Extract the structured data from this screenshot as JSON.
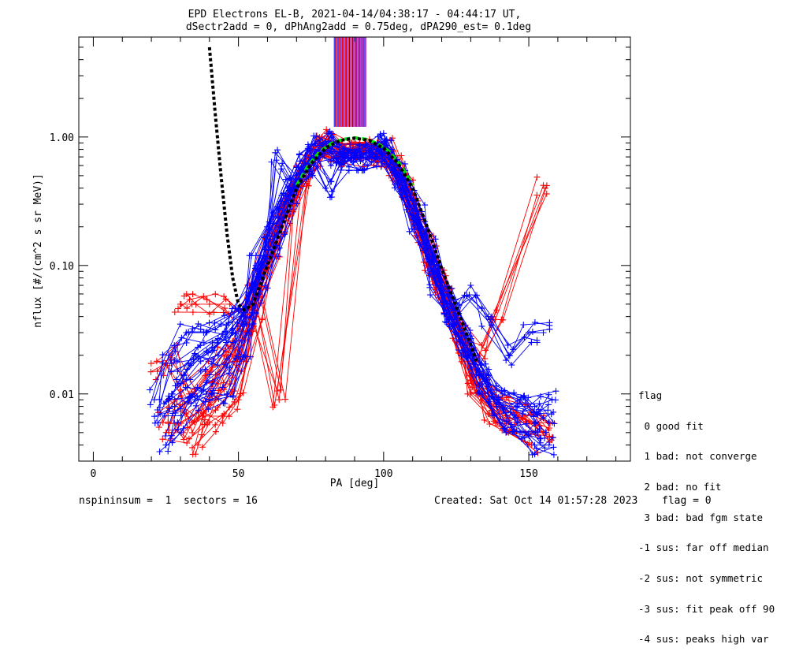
{
  "chart_data": {
    "type": "scatter",
    "title_line1": "EPD Electrons EL-B, 2021-04-14/04:38:17 - 04:44:17 UT,",
    "title_line2": "dSectr2add = 0, dPhAng2add = 0.75deg, dPA290_est=   0.1deg",
    "xlabel": "PA [deg]",
    "ylabel": "nflux [#/(cm^2 s sr MeV)]",
    "x_scale": "linear",
    "y_scale": "log",
    "xlim": [
      -5,
      185
    ],
    "ylim": [
      0.003,
      6.0
    ],
    "x_ticks": [
      {
        "value": 0,
        "label": "0"
      },
      {
        "value": 50,
        "label": "50"
      },
      {
        "value": 100,
        "label": "100"
      },
      {
        "value": 150,
        "label": "150"
      }
    ],
    "y_ticks": [
      {
        "value": 0.01,
        "label": "0.01"
      },
      {
        "value": 0.1,
        "label": "0.10"
      },
      {
        "value": 1.0,
        "label": "1.00"
      }
    ],
    "series": [
      {
        "color": "#ff0000",
        "marker": "+",
        "sweeps": [
          [
            [
              24,
              0.006
            ],
            [
              28,
              0.009
            ],
            [
              34,
              0.006
            ],
            [
              42,
              0.009
            ],
            [
              47,
              0.012
            ],
            [
              53,
              0.03
            ],
            [
              58,
              0.09
            ],
            [
              64,
              0.2
            ],
            [
              70,
              0.4
            ],
            [
              76,
              0.66
            ],
            [
              80,
              0.84
            ],
            [
              84,
              0.77
            ],
            [
              88,
              0.77
            ],
            [
              92,
              0.77
            ],
            [
              96,
              0.77
            ],
            [
              100,
              0.78
            ],
            [
              104,
              0.6
            ],
            [
              110,
              0.3
            ],
            [
              116,
              0.1
            ],
            [
              121,
              0.06
            ],
            [
              126,
              0.03
            ],
            [
              132,
              0.012
            ],
            [
              138,
              0.008
            ],
            [
              143,
              0.006
            ],
            [
              150,
              0.006
            ],
            [
              155,
              0.005
            ]
          ],
          [
            [
              26,
              0.005
            ],
            [
              31,
              0.005
            ],
            [
              38,
              0.007
            ],
            [
              43,
              0.012
            ],
            [
              49,
              0.022
            ],
            [
              55,
              0.06
            ],
            [
              61,
              0.14
            ],
            [
              67,
              0.3
            ],
            [
              73,
              0.6
            ],
            [
              79,
              0.88
            ],
            [
              85,
              0.75
            ],
            [
              90,
              0.75
            ],
            [
              95,
              0.75
            ],
            [
              101,
              0.82
            ],
            [
              107,
              0.45
            ],
            [
              113,
              0.2
            ],
            [
              119,
              0.08
            ],
            [
              124,
              0.04
            ],
            [
              129,
              0.018
            ],
            [
              134,
              0.009
            ],
            [
              140,
              0.007
            ],
            [
              147,
              0.006
            ],
            [
              153,
              0.006
            ]
          ],
          [
            [
              30,
              0.05
            ],
            [
              34,
              0.05
            ],
            [
              40,
              0.05
            ],
            [
              47,
              0.05
            ],
            [
              52,
              0.04
            ],
            [
              57,
              0.08
            ],
            [
              63,
              0.18
            ],
            [
              68,
              0.36
            ],
            [
              74,
              0.65
            ],
            [
              81,
              0.95
            ],
            [
              87,
              0.8
            ],
            [
              93,
              0.8
            ],
            [
              98,
              0.85
            ],
            [
              103,
              0.6
            ],
            [
              109,
              0.35
            ],
            [
              115,
              0.15
            ],
            [
              121,
              0.05
            ],
            [
              127,
              0.03
            ],
            [
              133,
              0.02
            ],
            [
              139,
              0.045
            ],
            [
              155,
              0.42
            ]
          ],
          [
            [
              36,
              0.004
            ],
            [
              40,
              0.006
            ],
            [
              45,
              0.007
            ],
            [
              50,
              0.009
            ],
            [
              56,
              0.04
            ],
            [
              62,
              0.12
            ],
            [
              67,
              0.25
            ],
            [
              72,
              0.5
            ],
            [
              78,
              0.8
            ],
            [
              84,
              0.7
            ],
            [
              91,
              0.7
            ],
            [
              97,
              0.7
            ],
            [
              102,
              0.78
            ],
            [
              108,
              0.4
            ],
            [
              114,
              0.18
            ],
            [
              120,
              0.07
            ],
            [
              126,
              0.03
            ],
            [
              131,
              0.012
            ],
            [
              136,
              0.007
            ],
            [
              143,
              0.005
            ],
            [
              151,
              0.004
            ]
          ],
          [
            [
              22,
              0.015
            ],
            [
              27,
              0.02
            ],
            [
              33,
              0.01
            ],
            [
              39,
              0.015
            ],
            [
              45,
              0.02
            ],
            [
              51,
              0.015
            ],
            [
              56,
              0.05
            ],
            [
              64,
              0.009
            ],
            [
              72,
              0.5
            ],
            [
              79,
              0.85
            ],
            [
              86,
              0.75
            ],
            [
              92,
              0.75
            ],
            [
              98,
              0.75
            ],
            [
              104,
              0.55
            ],
            [
              110,
              0.28
            ],
            [
              116,
              0.12
            ],
            [
              122,
              0.05
            ],
            [
              128,
              0.025
            ],
            [
              134,
              0.011
            ],
            [
              141,
              0.008
            ],
            [
              148,
              0.007
            ],
            [
              156,
              0.005
            ]
          ]
        ]
      },
      {
        "color": "#0000ff",
        "marker": "+",
        "sweeps": [
          [
            [
              21,
              0.009
            ],
            [
              26,
              0.02
            ],
            [
              32,
              0.03
            ],
            [
              38,
              0.03
            ],
            [
              44,
              0.035
            ],
            [
              50,
              0.045
            ],
            [
              55,
              0.07
            ],
            [
              61,
              0.16
            ],
            [
              66,
              0.3
            ],
            [
              72,
              0.55
            ],
            [
              78,
              0.86
            ],
            [
              84,
              0.72
            ],
            [
              89,
              0.72
            ],
            [
              94,
              0.72
            ],
            [
              99,
              0.74
            ],
            [
              105,
              0.5
            ],
            [
              111,
              0.22
            ],
            [
              117,
              0.09
            ],
            [
              123,
              0.04
            ],
            [
              129,
              0.02
            ],
            [
              135,
              0.013
            ],
            [
              141,
              0.01
            ],
            [
              147,
              0.009
            ],
            [
              153,
              0.007
            ],
            [
              157,
              0.006
            ]
          ],
          [
            [
              25,
              0.004
            ],
            [
              29,
              0.006
            ],
            [
              35,
              0.009
            ],
            [
              41,
              0.012
            ],
            [
              47,
              0.016
            ],
            [
              53,
              0.03
            ],
            [
              58,
              0.08
            ],
            [
              64,
              0.2
            ],
            [
              70,
              0.45
            ],
            [
              76,
              0.75
            ],
            [
              82,
              0.78
            ],
            [
              88,
              0.68
            ],
            [
              93,
              0.68
            ],
            [
              99,
              0.8
            ],
            [
              104,
              0.58
            ],
            [
              110,
              0.32
            ],
            [
              116,
              0.14
            ],
            [
              122,
              0.06
            ],
            [
              128,
              0.028
            ],
            [
              133,
              0.015
            ],
            [
              139,
              0.008
            ],
            [
              146,
              0.006
            ],
            [
              152,
              0.004
            ],
            [
              157,
              0.004
            ]
          ],
          [
            [
              27,
              0.01
            ],
            [
              32,
              0.013
            ],
            [
              37,
              0.018
            ],
            [
              43,
              0.02
            ],
            [
              48,
              0.03
            ],
            [
              54,
              0.05
            ],
            [
              60,
              0.12
            ],
            [
              63,
              0.66
            ],
            [
              69,
              0.42
            ],
            [
              75,
              0.7
            ],
            [
              80,
              0.4
            ],
            [
              86,
              0.65
            ],
            [
              92,
              0.65
            ],
            [
              97,
              0.7
            ],
            [
              101,
              0.86
            ],
            [
              107,
              0.4
            ],
            [
              113,
              0.17
            ],
            [
              118,
              0.07
            ],
            [
              124,
              0.045
            ],
            [
              130,
              0.07
            ],
            [
              136,
              0.04
            ],
            [
              143,
              0.02
            ],
            [
              150,
              0.03
            ],
            [
              155,
              0.03
            ]
          ],
          [
            [
              23,
              0.007
            ],
            [
              28,
              0.008
            ],
            [
              34,
              0.01
            ],
            [
              40,
              0.009
            ],
            [
              46,
              0.01
            ],
            [
              52,
              0.02
            ],
            [
              57,
              0.06
            ],
            [
              62,
              0.14
            ],
            [
              68,
              0.32
            ],
            [
              74,
              0.6
            ],
            [
              80,
              0.92
            ],
            [
              86,
              0.7
            ],
            [
              91,
              0.7
            ],
            [
              96,
              0.7
            ],
            [
              100,
              0.84
            ],
            [
              106,
              0.46
            ],
            [
              112,
              0.21
            ],
            [
              118,
              0.085
            ],
            [
              123,
              0.04
            ],
            [
              129,
              0.019
            ],
            [
              134,
              0.01
            ],
            [
              140,
              0.006
            ],
            [
              147,
              0.005
            ],
            [
              153,
              0.005
            ]
          ],
          [
            [
              29,
              0.015
            ],
            [
              35,
              0.02
            ],
            [
              41,
              0.025
            ],
            [
              46,
              0.03
            ],
            [
              51,
              0.04
            ],
            [
              56,
              0.1
            ],
            [
              62,
              0.24
            ],
            [
              67,
              0.4
            ],
            [
              73,
              0.62
            ],
            [
              79,
              0.9
            ],
            [
              85,
              0.74
            ],
            [
              90,
              0.74
            ],
            [
              96,
              0.74
            ],
            [
              101,
              0.9
            ],
            [
              106,
              0.52
            ],
            [
              112,
              0.25
            ],
            [
              117,
              0.11
            ],
            [
              123,
              0.05
            ],
            [
              128,
              0.024
            ],
            [
              134,
              0.012
            ],
            [
              140,
              0.009
            ],
            [
              146,
              0.008
            ],
            [
              152,
              0.008
            ],
            [
              158,
              0.009
            ]
          ]
        ]
      }
    ],
    "fits": [
      {
        "color": "#00dd00",
        "style": "dashed",
        "points": [
          [
            70,
            0.42
          ],
          [
            74,
            0.6
          ],
          [
            78,
            0.77
          ],
          [
            82,
            0.89
          ],
          [
            86,
            0.96
          ],
          [
            90,
            0.985
          ],
          [
            94,
            0.96
          ],
          [
            98,
            0.89
          ],
          [
            102,
            0.77
          ],
          [
            106,
            0.6
          ],
          [
            110,
            0.42
          ]
        ]
      },
      {
        "color": "#000000",
        "style": "dotted",
        "points": [
          [
            40,
            5.0
          ],
          [
            42,
            1.5
          ],
          [
            44,
            0.5
          ],
          [
            46,
            0.18
          ],
          [
            48,
            0.08
          ],
          [
            50,
            0.05
          ],
          [
            52,
            0.045
          ],
          [
            55,
            0.05
          ],
          [
            60,
            0.1
          ],
          [
            65,
            0.2
          ],
          [
            70,
            0.4
          ],
          [
            75,
            0.62
          ],
          [
            80,
            0.82
          ],
          [
            85,
            0.94
          ],
          [
            90,
            0.98
          ],
          [
            95,
            0.94
          ],
          [
            100,
            0.82
          ],
          [
            105,
            0.62
          ],
          [
            110,
            0.4
          ],
          [
            115,
            0.2
          ],
          [
            120,
            0.095
          ],
          [
            125,
            0.048
          ],
          [
            130,
            0.024
          ],
          [
            132,
            0.018
          ]
        ]
      }
    ],
    "spikes": {
      "x_range": [
        83,
        94
      ],
      "y_from": 1.2,
      "y_to": 6.0,
      "colors": [
        "#0000ff",
        "#aa00aa",
        "#ff0000"
      ]
    },
    "legend": {
      "placement": "bottom-right, outside plot",
      "title": "flag",
      "items": [
        " 0 good fit",
        " 1 bad: not converge",
        " 2 bad: no fit",
        " 3 bad: bad fgm state",
        "-1 sus: far off median",
        "-2 sus: not symmetric",
        "-3 sus: fit peak off 90",
        "-4 sus: peaks high var"
      ]
    },
    "footer": {
      "left": "nspininsum =  1  sectors = 16",
      "center": "Created: Sat Oct 14 01:57:28 2023",
      "right": "flag = 0"
    }
  }
}
